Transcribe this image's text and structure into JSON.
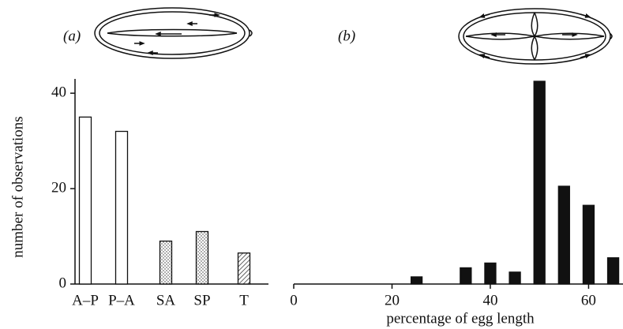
{
  "chart_data": [
    {
      "type": "bar",
      "panel_label": "(a)",
      "ylabel": "number of observations",
      "categories": [
        "A–P",
        "P–A",
        "SA",
        "SP",
        "T"
      ],
      "values": [
        35,
        32,
        9,
        11,
        6.5
      ],
      "fills": [
        "open",
        "open",
        "stippled",
        "stippled",
        "hatched"
      ],
      "color": "#111111",
      "ylim": [
        0,
        43
      ],
      "yticks": [
        0,
        20,
        40
      ]
    },
    {
      "type": "bar",
      "panel_label": "(b)",
      "xlabel": "percentage of egg length",
      "x": [
        25,
        35,
        40,
        45,
        50,
        55,
        60,
        65
      ],
      "values": [
        1.5,
        3.4,
        4.4,
        2.5,
        42.5,
        20.5,
        16.5,
        5.5
      ],
      "fills": [
        "solid",
        "solid",
        "solid",
        "solid",
        "solid",
        "solid",
        "solid",
        "solid"
      ],
      "color": "#111111",
      "xlim": [
        0,
        67
      ],
      "ylim": [
        0,
        43
      ],
      "xticks": [
        0,
        20,
        40,
        60
      ]
    }
  ]
}
